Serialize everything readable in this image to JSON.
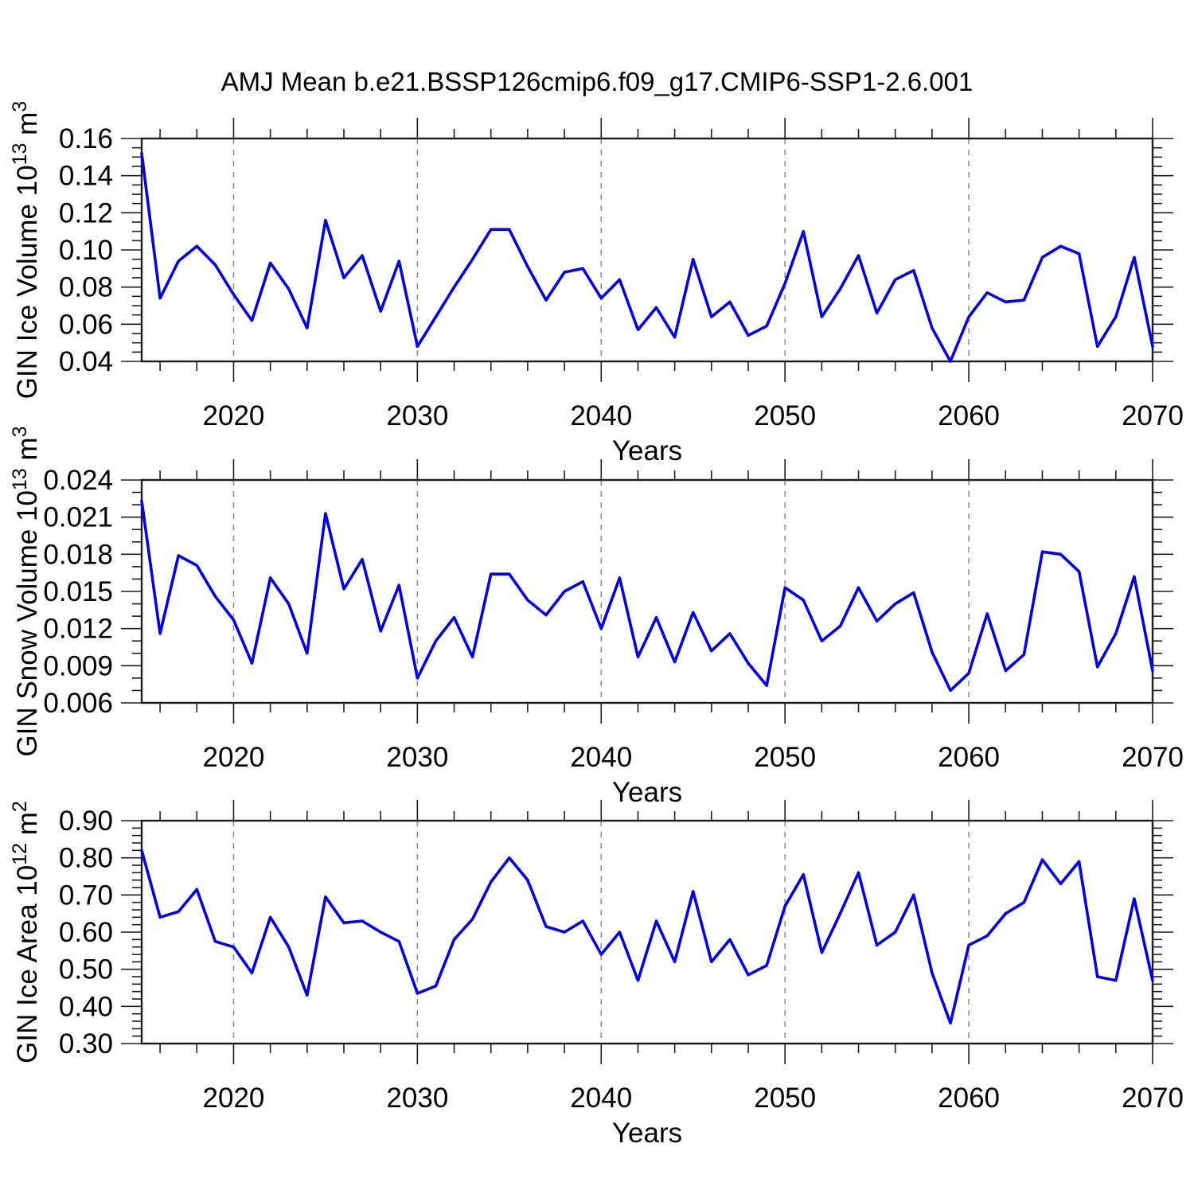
{
  "title": "AMJ Mean b.e21.BSSP126cmip6.f09_g17.CMIP6-SSP1-2.6.001",
  "colors": {
    "line": "#0000ee",
    "grid": "#8a8a8a",
    "axis": "#1c1c1c",
    "text": "#000000"
  },
  "x_axis": {
    "label": "Years",
    "range": [
      2015,
      2070
    ],
    "major_ticks": [
      2020,
      2030,
      2040,
      2050,
      2060,
      2070
    ],
    "major_tick_labels": [
      "2020",
      "2030",
      "2040",
      "2050",
      "2060",
      "2070"
    ],
    "minor_step_years": 2,
    "dashed_gridlines_at": [
      2020,
      2030,
      2040,
      2050,
      2060
    ],
    "years": [
      2015,
      2016,
      2017,
      2018,
      2019,
      2020,
      2021,
      2022,
      2023,
      2024,
      2025,
      2026,
      2027,
      2028,
      2029,
      2030,
      2031,
      2032,
      2033,
      2034,
      2035,
      2036,
      2037,
      2038,
      2039,
      2040,
      2041,
      2042,
      2043,
      2044,
      2045,
      2046,
      2047,
      2048,
      2049,
      2050,
      2051,
      2052,
      2053,
      2054,
      2055,
      2056,
      2057,
      2058,
      2059,
      2060,
      2061,
      2062,
      2063,
      2064,
      2065,
      2066,
      2067,
      2068,
      2069,
      2070
    ]
  },
  "chart_data": [
    {
      "type": "line",
      "title": "",
      "xlabel": "Years",
      "ylabel": "GIN Ice Volume 10^13 m^3",
      "ylabel_parts": [
        {
          "text": "GIN Ice Volume 10",
          "sup": false
        },
        {
          "text": "13",
          "sup": true
        },
        {
          "text": " m",
          "sup": false
        },
        {
          "text": "3",
          "sup": true
        }
      ],
      "ylim": [
        0.04,
        0.16
      ],
      "y_major_step": 0.02,
      "y_tick_labels": [
        "0.04",
        "0.06",
        "0.08",
        "0.10",
        "0.12",
        "0.14",
        "0.16"
      ],
      "y_minor_divisions": 4,
      "grid": "vertical-dashed",
      "legend": "none",
      "x_range": [
        2015,
        2070
      ],
      "values": [
        0.152,
        0.074,
        0.094,
        0.102,
        0.092,
        0.076,
        0.062,
        0.093,
        0.079,
        0.058,
        0.116,
        0.085,
        0.097,
        0.067,
        0.094,
        0.048,
        0.064,
        0.08,
        0.095,
        0.111,
        0.111,
        0.091,
        0.073,
        0.088,
        0.09,
        0.074,
        0.084,
        0.057,
        0.069,
        0.053,
        0.095,
        0.064,
        0.072,
        0.054,
        0.059,
        0.082,
        0.11,
        0.064,
        0.079,
        0.097,
        0.066,
        0.084,
        0.089,
        0.058,
        0.04,
        0.064,
        0.077,
        0.072,
        0.073,
        0.096,
        0.102,
        0.098,
        0.048,
        0.064,
        0.096,
        0.048
      ]
    },
    {
      "type": "line",
      "title": "",
      "xlabel": "Years",
      "ylabel": "GIN Snow Volume 10^13 m^3",
      "ylabel_parts": [
        {
          "text": "GIN Snow Volume 10",
          "sup": false
        },
        {
          "text": "13",
          "sup": true
        },
        {
          "text": " m",
          "sup": false
        },
        {
          "text": "3",
          "sup": true
        }
      ],
      "ylim": [
        0.006,
        0.024
      ],
      "y_major_step": 0.003,
      "y_tick_labels": [
        "0.006",
        "0.009",
        "0.012",
        "0.015",
        "0.018",
        "0.021",
        "0.024"
      ],
      "y_minor_divisions": 3,
      "grid": "vertical-dashed",
      "legend": "none",
      "x_range": [
        2015,
        2070
      ],
      "values": [
        0.0223,
        0.0116,
        0.0179,
        0.0171,
        0.0146,
        0.0127,
        0.0092,
        0.0161,
        0.014,
        0.01,
        0.0213,
        0.0152,
        0.0176,
        0.0118,
        0.0155,
        0.008,
        0.011,
        0.0129,
        0.0097,
        0.0164,
        0.0164,
        0.0143,
        0.0131,
        0.015,
        0.0158,
        0.012,
        0.0161,
        0.0097,
        0.0129,
        0.0093,
        0.0133,
        0.0102,
        0.0116,
        0.0092,
        0.0074,
        0.0153,
        0.0143,
        0.011,
        0.0122,
        0.0153,
        0.0126,
        0.014,
        0.0149,
        0.0101,
        0.007,
        0.0084,
        0.0132,
        0.0086,
        0.0099,
        0.0182,
        0.018,
        0.0166,
        0.0089,
        0.0116,
        0.0162,
        0.0086
      ]
    },
    {
      "type": "line",
      "title": "",
      "xlabel": "Years",
      "ylabel": "GIN Ice Area 10^12 m^2",
      "ylabel_parts": [
        {
          "text": "GIN Ice Area 10",
          "sup": false
        },
        {
          "text": "12",
          "sup": true
        },
        {
          "text": " m",
          "sup": false
        },
        {
          "text": "2",
          "sup": true
        }
      ],
      "ylim": [
        0.3,
        0.9
      ],
      "y_major_step": 0.1,
      "y_tick_labels": [
        "0.30",
        "0.40",
        "0.50",
        "0.60",
        "0.70",
        "0.80",
        "0.90"
      ],
      "y_minor_divisions": 5,
      "grid": "vertical-dashed",
      "legend": "none",
      "x_range": [
        2015,
        2070
      ],
      "values": [
        0.82,
        0.64,
        0.655,
        0.715,
        0.575,
        0.56,
        0.49,
        0.64,
        0.56,
        0.43,
        0.695,
        0.625,
        0.63,
        0.6,
        0.575,
        0.435,
        0.455,
        0.58,
        0.635,
        0.735,
        0.8,
        0.74,
        0.615,
        0.6,
        0.63,
        0.54,
        0.6,
        0.47,
        0.63,
        0.52,
        0.71,
        0.52,
        0.58,
        0.485,
        0.51,
        0.67,
        0.755,
        0.545,
        0.65,
        0.76,
        0.565,
        0.6,
        0.7,
        0.49,
        0.355,
        0.565,
        0.59,
        0.65,
        0.68,
        0.795,
        0.73,
        0.79,
        0.48,
        0.47,
        0.69,
        0.47
      ]
    }
  ]
}
